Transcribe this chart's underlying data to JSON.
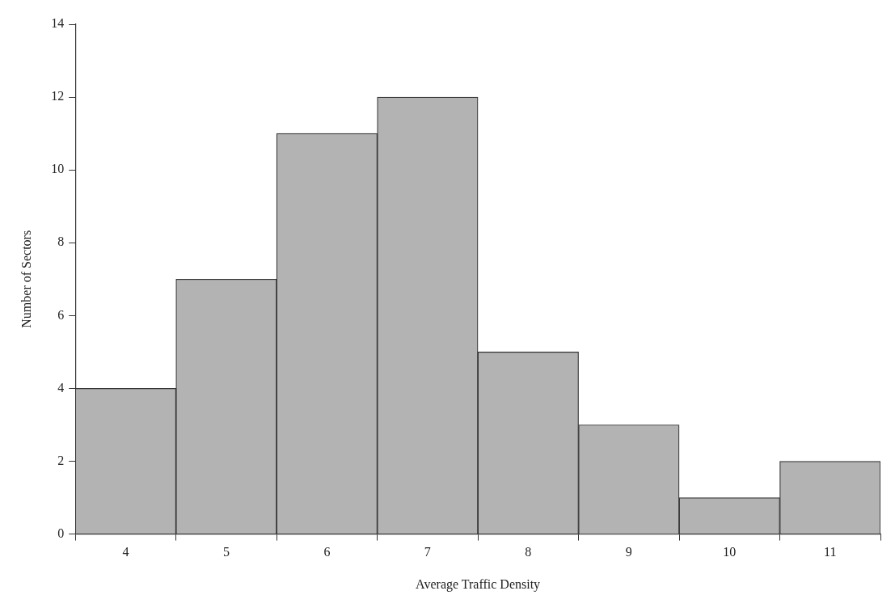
{
  "chart_data": {
    "type": "bar",
    "xlabel": "Average Traffic Density",
    "ylabel": "Number of Sectors",
    "categories": [
      "4",
      "5",
      "6",
      "7",
      "8",
      "9",
      "10",
      "11"
    ],
    "values": [
      4,
      7,
      11,
      12,
      5,
      3,
      1,
      2
    ],
    "color": "#b3b3b3",
    "ylim": [
      0,
      14
    ],
    "yticks": [
      0,
      2,
      4,
      6,
      8,
      10,
      12,
      14
    ],
    "grid": false,
    "legend": false
  }
}
